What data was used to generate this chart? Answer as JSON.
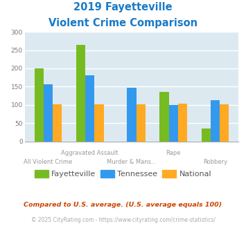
{
  "title_line1": "2019 Fayetteville",
  "title_line2": "Violent Crime Comparison",
  "title_color": "#1a7ac7",
  "fayetteville": [
    200,
    265,
    0,
    135,
    35
  ],
  "tennessee": [
    157,
    182,
    147,
    100,
    112
  ],
  "national": [
    102,
    102,
    102,
    103,
    102
  ],
  "color_fayetteville": "#77bb22",
  "color_tennessee": "#3399ee",
  "color_national": "#ffaa22",
  "ylim": [
    0,
    300
  ],
  "yticks": [
    0,
    50,
    100,
    150,
    200,
    250,
    300
  ],
  "background_color": "#dce9f0",
  "grid_color": "#ffffff",
  "legend_labels": [
    "Fayetteville",
    "Tennessee",
    "National"
  ],
  "xlabels_row1": [
    "",
    "Aggravated Assault",
    "",
    "Rape",
    ""
  ],
  "xlabels_row2": [
    "All Violent Crime",
    "",
    "Murder & Mans...",
    "",
    "Robbery"
  ],
  "footnote1": "Compared to U.S. average. (U.S. average equals 100)",
  "footnote2": "© 2025 CityRating.com - https://www.cityrating.com/crime-statistics/",
  "footnote1_color": "#cc4400",
  "footnote2_color": "#aaaaaa",
  "url_color": "#3399ee"
}
